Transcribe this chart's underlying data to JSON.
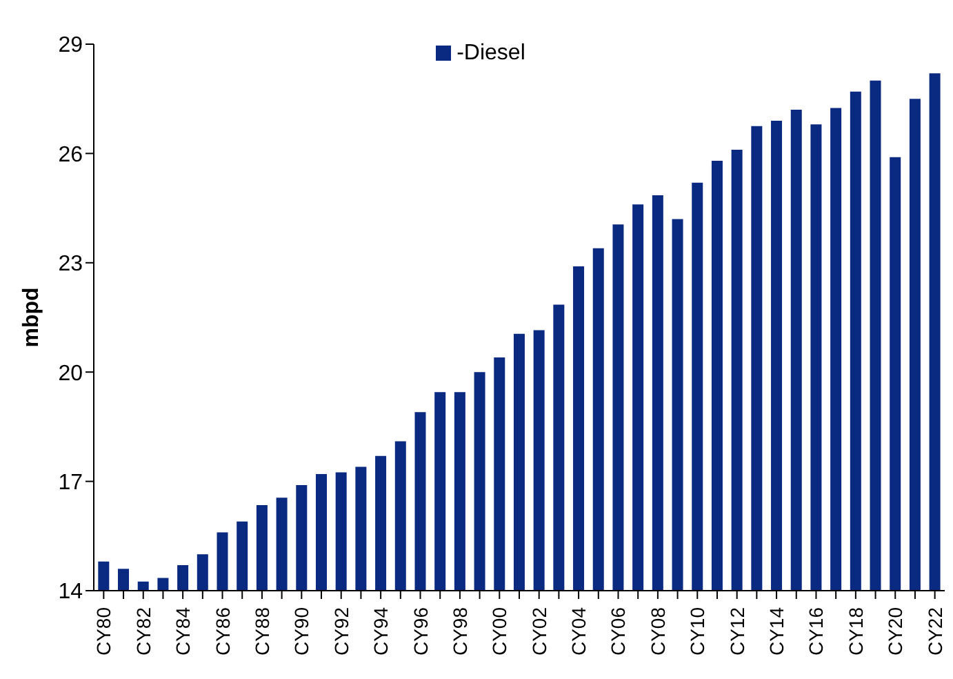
{
  "chart_data": {
    "type": "bar",
    "ylabel": "mbpd",
    "categories": [
      "CY80",
      null,
      "CY82",
      null,
      "CY84",
      null,
      "CY86",
      null,
      "CY88",
      null,
      "CY90",
      null,
      "CY92",
      null,
      "CY94",
      null,
      "CY96",
      null,
      "CY98",
      null,
      "CY00",
      null,
      "CY02",
      null,
      "CY04",
      null,
      "CY06",
      null,
      "CY08",
      null,
      "CY10",
      null,
      "CY12",
      null,
      "CY14",
      null,
      "CY16",
      null,
      "CY18",
      null,
      "CY20",
      null,
      "CY22"
    ],
    "series": [
      {
        "name": "-Diesel",
        "color": "#0a2a82",
        "values": [
          14.8,
          14.6,
          14.25,
          14.35,
          14.7,
          15.0,
          15.6,
          15.9,
          16.35,
          16.55,
          16.9,
          17.2,
          17.25,
          17.4,
          17.7,
          18.1,
          18.9,
          19.45,
          19.45,
          20.0,
          20.4,
          21.05,
          21.15,
          21.85,
          22.9,
          23.4,
          24.05,
          24.6,
          24.85,
          24.2,
          25.2,
          25.8,
          26.1,
          26.75,
          26.9,
          27.2,
          26.8,
          27.25,
          27.7,
          28.0,
          25.9,
          27.5,
          28.2
        ]
      }
    ],
    "ylim": [
      14,
      29
    ],
    "yticks": [
      14,
      17,
      20,
      23,
      26,
      29
    ],
    "grid": false,
    "legend": "top"
  }
}
